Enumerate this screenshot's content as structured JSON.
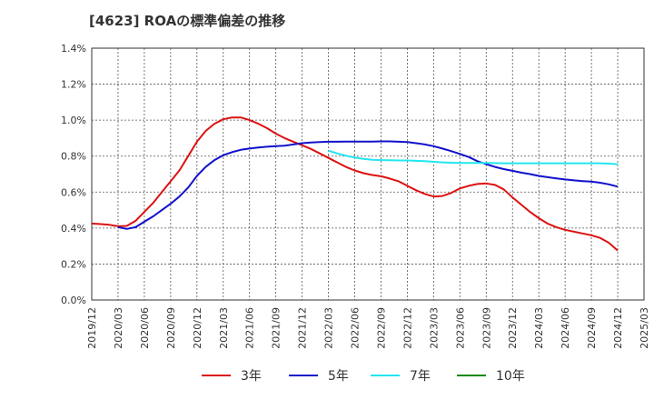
{
  "chart_data": {
    "type": "line",
    "title": "[4623]  ROAの標準偏差の推移",
    "xlabel": "",
    "ylabel": "",
    "ylim": [
      0,
      1.4
    ],
    "xlim": [
      "2019/12",
      "2025/03"
    ],
    "yticks": [
      "0.0%",
      "0.2%",
      "0.4%",
      "0.6%",
      "0.8%",
      "1.0%",
      "1.2%",
      "1.4%"
    ],
    "xticks": [
      "2019/12",
      "2020/03",
      "2020/06",
      "2020/09",
      "2020/12",
      "2021/03",
      "2021/06",
      "2021/09",
      "2021/12",
      "2022/03",
      "2022/06",
      "2022/09",
      "2022/12",
      "2023/03",
      "2023/06",
      "2023/09",
      "2023/12",
      "2024/03",
      "2024/06",
      "2024/09",
      "2024/12",
      "2025/03"
    ],
    "grid": true,
    "legend_position": "bottom",
    "series": [
      {
        "name": "3年",
        "color": "#dd1111",
        "points": [
          [
            "2019/12",
            0.425
          ],
          [
            "2020/01",
            0.422
          ],
          [
            "2020/02",
            0.418
          ],
          [
            "2020/03",
            0.41
          ],
          [
            "2020/04",
            0.412
          ],
          [
            "2020/05",
            0.44
          ],
          [
            "2020/06",
            0.49
          ],
          [
            "2020/07",
            0.54
          ],
          [
            "2020/08",
            0.6
          ],
          [
            "2020/09",
            0.66
          ],
          [
            "2020/10",
            0.72
          ],
          [
            "2020/11",
            0.8
          ],
          [
            "2020/12",
            0.88
          ],
          [
            "2021/01",
            0.94
          ],
          [
            "2021/02",
            0.98
          ],
          [
            "2021/03",
            1.005
          ],
          [
            "2021/04",
            1.015
          ],
          [
            "2021/05",
            1.015
          ],
          [
            "2021/06",
            1.0
          ],
          [
            "2021/07",
            0.98
          ],
          [
            "2021/08",
            0.955
          ],
          [
            "2021/09",
            0.925
          ],
          [
            "2021/10",
            0.9
          ],
          [
            "2021/11",
            0.88
          ],
          [
            "2021/12",
            0.86
          ],
          [
            "2022/01",
            0.84
          ],
          [
            "2022/02",
            0.815
          ],
          [
            "2022/03",
            0.79
          ],
          [
            "2022/04",
            0.765
          ],
          [
            "2022/05",
            0.74
          ],
          [
            "2022/06",
            0.72
          ],
          [
            "2022/07",
            0.705
          ],
          [
            "2022/08",
            0.695
          ],
          [
            "2022/09",
            0.688
          ],
          [
            "2022/10",
            0.675
          ],
          [
            "2022/11",
            0.66
          ],
          [
            "2022/12",
            0.635
          ],
          [
            "2023/01",
            0.61
          ],
          [
            "2023/02",
            0.59
          ],
          [
            "2023/03",
            0.575
          ],
          [
            "2023/04",
            0.578
          ],
          [
            "2023/05",
            0.595
          ],
          [
            "2023/06",
            0.62
          ],
          [
            "2023/07",
            0.635
          ],
          [
            "2023/08",
            0.645
          ],
          [
            "2023/09",
            0.648
          ],
          [
            "2023/10",
            0.64
          ],
          [
            "2023/11",
            0.615
          ],
          [
            "2023/12",
            0.57
          ],
          [
            "2024/01",
            0.53
          ],
          [
            "2024/02",
            0.49
          ],
          [
            "2024/03",
            0.455
          ],
          [
            "2024/04",
            0.425
          ],
          [
            "2024/05",
            0.405
          ],
          [
            "2024/06",
            0.39
          ],
          [
            "2024/07",
            0.38
          ],
          [
            "2024/08",
            0.37
          ],
          [
            "2024/09",
            0.36
          ],
          [
            "2024/10",
            0.345
          ],
          [
            "2024/11",
            0.318
          ],
          [
            "2024/12",
            0.275
          ]
        ]
      },
      {
        "name": "5年",
        "color": "#1111cc",
        "points": [
          [
            "2020/03",
            0.405
          ],
          [
            "2020/04",
            0.395
          ],
          [
            "2020/05",
            0.405
          ],
          [
            "2020/06",
            0.435
          ],
          [
            "2020/07",
            0.465
          ],
          [
            "2020/08",
            0.5
          ],
          [
            "2020/09",
            0.535
          ],
          [
            "2020/10",
            0.575
          ],
          [
            "2020/11",
            0.625
          ],
          [
            "2020/12",
            0.69
          ],
          [
            "2021/01",
            0.74
          ],
          [
            "2021/02",
            0.778
          ],
          [
            "2021/03",
            0.805
          ],
          [
            "2021/04",
            0.822
          ],
          [
            "2021/05",
            0.835
          ],
          [
            "2021/06",
            0.842
          ],
          [
            "2021/07",
            0.848
          ],
          [
            "2021/08",
            0.852
          ],
          [
            "2021/09",
            0.855
          ],
          [
            "2021/10",
            0.858
          ],
          [
            "2021/11",
            0.865
          ],
          [
            "2021/12",
            0.872
          ],
          [
            "2022/01",
            0.876
          ],
          [
            "2022/02",
            0.878
          ],
          [
            "2022/03",
            0.88
          ],
          [
            "2022/04",
            0.88
          ],
          [
            "2022/05",
            0.881
          ],
          [
            "2022/06",
            0.881
          ],
          [
            "2022/07",
            0.881
          ],
          [
            "2022/08",
            0.881
          ],
          [
            "2022/09",
            0.882
          ],
          [
            "2022/10",
            0.882
          ],
          [
            "2022/11",
            0.88
          ],
          [
            "2022/12",
            0.878
          ],
          [
            "2023/01",
            0.872
          ],
          [
            "2023/02",
            0.865
          ],
          [
            "2023/03",
            0.855
          ],
          [
            "2023/04",
            0.842
          ],
          [
            "2023/05",
            0.828
          ],
          [
            "2023/06",
            0.812
          ],
          [
            "2023/07",
            0.795
          ],
          [
            "2023/08",
            0.772
          ],
          [
            "2023/09",
            0.755
          ],
          [
            "2023/10",
            0.74
          ],
          [
            "2023/11",
            0.728
          ],
          [
            "2023/12",
            0.718
          ],
          [
            "2024/01",
            0.708
          ],
          [
            "2024/02",
            0.7
          ],
          [
            "2024/03",
            0.69
          ],
          [
            "2024/04",
            0.683
          ],
          [
            "2024/05",
            0.676
          ],
          [
            "2024/06",
            0.67
          ],
          [
            "2024/07",
            0.665
          ],
          [
            "2024/08",
            0.661
          ],
          [
            "2024/09",
            0.658
          ],
          [
            "2024/10",
            0.652
          ],
          [
            "2024/11",
            0.643
          ],
          [
            "2024/12",
            0.63
          ]
        ]
      },
      {
        "name": "7年",
        "color": "#22e6f0",
        "points": [
          [
            "2022/03",
            0.83
          ],
          [
            "2022/04",
            0.815
          ],
          [
            "2022/05",
            0.802
          ],
          [
            "2022/06",
            0.792
          ],
          [
            "2022/07",
            0.785
          ],
          [
            "2022/08",
            0.78
          ],
          [
            "2022/09",
            0.778
          ],
          [
            "2022/10",
            0.777
          ],
          [
            "2022/11",
            0.776
          ],
          [
            "2022/12",
            0.776
          ],
          [
            "2023/01",
            0.774
          ],
          [
            "2023/02",
            0.772
          ],
          [
            "2023/03",
            0.768
          ],
          [
            "2023/04",
            0.765
          ],
          [
            "2023/05",
            0.763
          ],
          [
            "2023/06",
            0.762
          ],
          [
            "2023/07",
            0.762
          ],
          [
            "2023/08",
            0.762
          ],
          [
            "2023/09",
            0.762
          ],
          [
            "2023/10",
            0.761
          ],
          [
            "2023/11",
            0.76
          ],
          [
            "2023/12",
            0.76
          ],
          [
            "2024/01",
            0.76
          ],
          [
            "2024/02",
            0.76
          ],
          [
            "2024/03",
            0.76
          ],
          [
            "2024/04",
            0.76
          ],
          [
            "2024/05",
            0.76
          ],
          [
            "2024/06",
            0.76
          ],
          [
            "2024/07",
            0.76
          ],
          [
            "2024/08",
            0.76
          ],
          [
            "2024/09",
            0.76
          ],
          [
            "2024/10",
            0.76
          ],
          [
            "2024/11",
            0.758
          ],
          [
            "2024/12",
            0.755
          ]
        ]
      },
      {
        "name": "10年",
        "color": "#118811",
        "points": []
      }
    ]
  }
}
